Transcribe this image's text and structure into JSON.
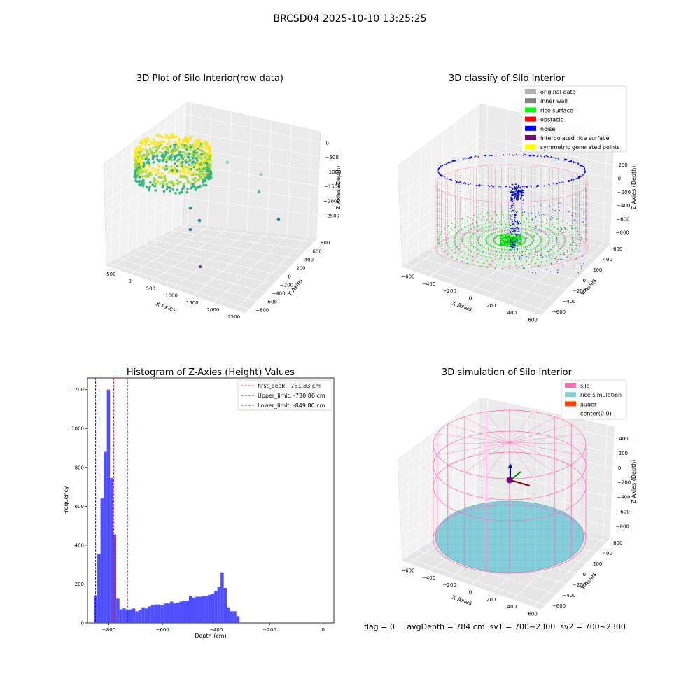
{
  "figure_title": "BRCSD04 2025-10-10 13:25:25",
  "footer": {
    "flag": "flag = 0",
    "avg_depth": "avgDepth = 784 cm",
    "sv1": "sv1 = 700~2300",
    "sv2": "sv2 = 700~2300"
  },
  "chart_data": [
    {
      "type": "scatter",
      "title": "3D Plot of Silo Interior(row data)",
      "xlabel": "X Axies",
      "ylabel": "Y Axies",
      "zlabel": "Z Axies (Depth)",
      "x_ticks": [
        "−500",
        "0",
        "500",
        "1000",
        "1500",
        "2000",
        "2500"
      ],
      "y_ticks": [
        "−800",
        "−600",
        "−400",
        "−200",
        "0",
        "200",
        "400",
        "600",
        "800"
      ],
      "z_ticks": [
        "0",
        "−500",
        "−1000",
        "−1500",
        "−2000",
        "−2500"
      ],
      "colormap": [
        "#440154",
        "#31688e",
        "#35b779",
        "#fde725"
      ]
    },
    {
      "type": "scatter",
      "title": "3D classify of Silo Interior",
      "xlabel": "X Axies",
      "ylabel": "Y Axies",
      "zlabel": "Z Axies (Depth)",
      "x_ticks": [
        "−600",
        "−400",
        "−200",
        "0",
        "200",
        "400",
        "600"
      ],
      "y_ticks": [
        "−600",
        "−400",
        "−200",
        "0",
        "200",
        "400",
        "600"
      ],
      "z_ticks": [
        "200",
        "0",
        "−200",
        "−400",
        "−600",
        "−800"
      ],
      "legend": [
        {
          "label": "original data",
          "color": "#b0b0b0"
        },
        {
          "label": "inner wall",
          "color": "#808080"
        },
        {
          "label": "rice surface",
          "color": "#00ff00"
        },
        {
          "label": "obstacle",
          "color": "#ff0000"
        },
        {
          "label": "noise",
          "color": "#0000ff"
        },
        {
          "label": "interpolated rice surface",
          "color": "#800080"
        },
        {
          "label": "symmetric generated points",
          "color": "#ffff00"
        }
      ],
      "legend_position": "top-right"
    },
    {
      "type": "bar",
      "title": "Histogram of Z-Axies (Height) Values",
      "xlabel": "Depth (cm)",
      "ylabel": "Frequency",
      "xlim": [
        -880,
        40
      ],
      "ylim": [
        0,
        1260
      ],
      "x_ticks": [
        -800,
        -600,
        -400,
        -200,
        0
      ],
      "x_tick_labels": [
        "−800",
        "−600",
        "−400",
        "−200",
        "0"
      ],
      "y_ticks": [
        0,
        200,
        400,
        600,
        800,
        1000,
        1200
      ],
      "bin_start": -855,
      "bin_width": 11.8,
      "values": [
        140,
        355,
        640,
        880,
        1200,
        745,
        455,
        125,
        70,
        75,
        65,
        70,
        75,
        60,
        65,
        80,
        75,
        85,
        90,
        95,
        95,
        90,
        100,
        100,
        110,
        100,
        105,
        110,
        115,
        115,
        140,
        130,
        135,
        135,
        140,
        140,
        145,
        150,
        165,
        185,
        260,
        180,
        80,
        60,
        60,
        35
      ],
      "bar_color": "#4040ff",
      "reference_lines": [
        {
          "label": "first_peak: -781.83 cm",
          "value": -781.83,
          "color": "#ff0000"
        },
        {
          "label": "Upper_limit: -730.86 cm",
          "value": -730.86,
          "color": "#0000cc"
        },
        {
          "label": "Lower_limit: -849.80 cm",
          "value": -849.8,
          "color": "#0000cc"
        }
      ],
      "legend_position": "top-right"
    },
    {
      "type": "scatter",
      "title": "3D simulation of Silo Interior",
      "xlabel": "X Axies",
      "ylabel": "Y Axies",
      "zlabel": "Z Axies (Depth)",
      "x_ticks": [
        "−600",
        "−400",
        "−200",
        "0",
        "200",
        "400",
        "600"
      ],
      "y_ticks": [
        "−600",
        "−400",
        "−200",
        "0",
        "200",
        "400",
        "600"
      ],
      "z_ticks": [
        "400",
        "200",
        "0",
        "−200",
        "−400",
        "−600",
        "−800"
      ],
      "legend": [
        {
          "label": "silo",
          "color": "#ff69b4"
        },
        {
          "label": "rice simulation",
          "color": "#87cedb"
        },
        {
          "label": "auger",
          "color": "#ff4500"
        },
        {
          "label": "center(0,0)",
          "color": "none"
        }
      ],
      "legend_position": "top-right"
    }
  ]
}
